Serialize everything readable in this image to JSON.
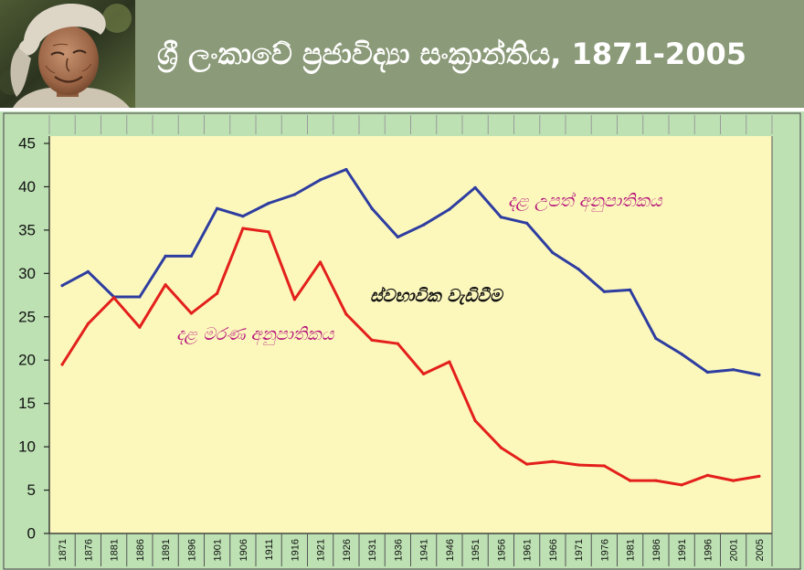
{
  "header": {
    "title": "ශ්‍රී ලංකාවේ ප්‍රජාවිද්‍යා සංක්‍රාන්තිය, 1871-2005",
    "banner_color": "#8b9a78"
  },
  "chart_data": {
    "type": "line",
    "categories": [
      "1871",
      "1876",
      "1881",
      "1886",
      "1891",
      "1896",
      "1901",
      "1906",
      "1911",
      "1916",
      "1921",
      "1926",
      "1931",
      "1936",
      "1941",
      "1946",
      "1951",
      "1956",
      "1961",
      "1966",
      "1971",
      "1976",
      "1981",
      "1986",
      "1991",
      "1996",
      "2001",
      "2005"
    ],
    "ylim": [
      0,
      45
    ],
    "yticks": [
      0,
      5,
      10,
      15,
      20,
      25,
      30,
      35,
      40,
      45
    ],
    "grid": false,
    "series": [
      {
        "name": "දළ උපත් අනුපාතිකය",
        "color": "#2e3da0",
        "values": [
          28.6,
          30.2,
          27.3,
          27.3,
          32.0,
          32.0,
          37.5,
          36.6,
          38.1,
          39.1,
          40.8,
          42.0,
          37.5,
          34.2,
          35.6,
          37.4,
          39.9,
          36.5,
          35.8,
          32.4,
          30.5,
          27.9,
          28.1,
          22.5,
          20.7,
          18.6,
          18.9,
          18.3
        ]
      },
      {
        "name": "දළ මරණ අනුපාතිකය",
        "color": "#e3201b",
        "values": [
          19.5,
          24.2,
          27.2,
          23.8,
          28.7,
          25.4,
          27.7,
          35.2,
          34.8,
          27.0,
          31.3,
          25.3,
          22.3,
          21.9,
          18.4,
          19.8,
          13.0,
          9.9,
          8.0,
          8.3,
          7.9,
          7.8,
          6.1,
          6.1,
          5.6,
          6.7,
          6.1,
          6.6
        ]
      }
    ],
    "annotations": [
      {
        "text": "ස්වභාවික වැඩිවීම"
      }
    ],
    "colors": {
      "plot_background": "#fcf8bc",
      "chart_background": "#bde1b3",
      "label_color": "#b5137c",
      "axis_color": "#222222"
    }
  }
}
